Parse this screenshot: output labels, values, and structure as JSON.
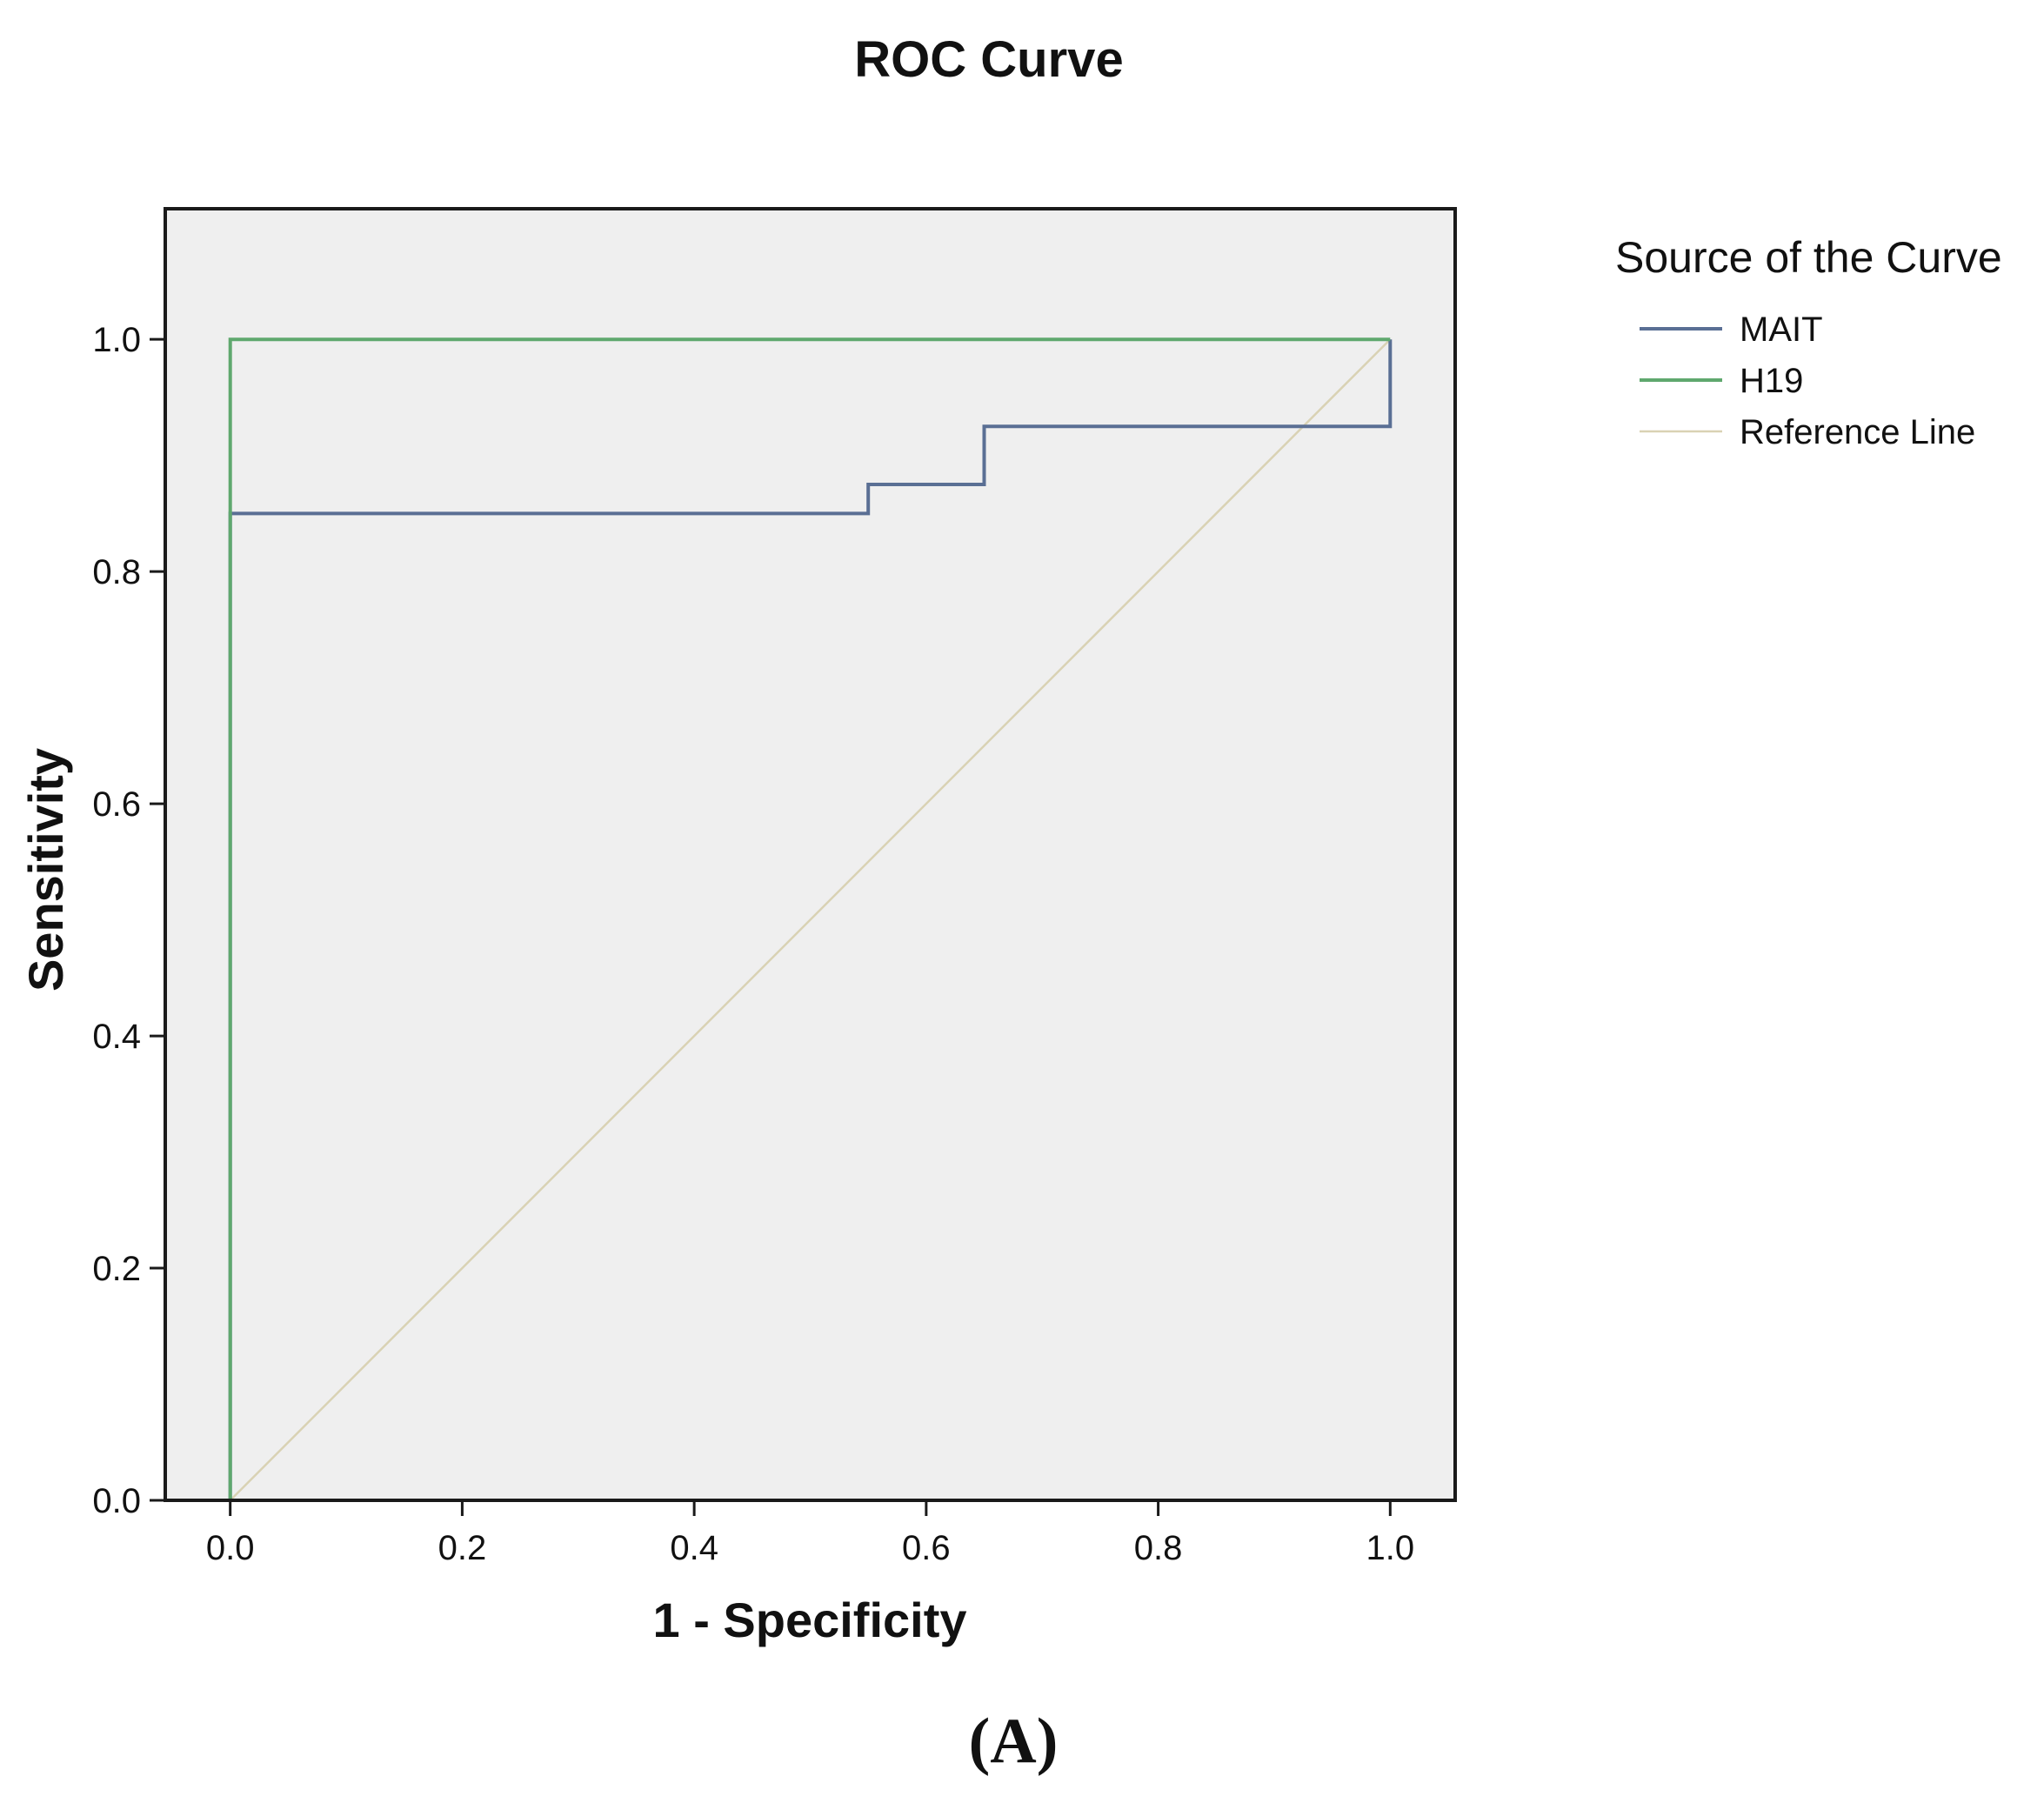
{
  "chart_data": {
    "type": "line",
    "title": "ROC Curve",
    "xlabel": "1 - Specificity",
    "ylabel": "Sensitivity",
    "xlim": [
      -0.056,
      1.056
    ],
    "ylim": [
      0.0,
      1.1125
    ],
    "xticks": [
      0.0,
      0.2,
      0.4,
      0.6,
      0.8,
      1.0
    ],
    "yticks": [
      0.0,
      0.2,
      0.4,
      0.6,
      0.8,
      1.0
    ],
    "xtick_labels": [
      "0.0",
      "0.2",
      "0.4",
      "0.6",
      "0.8",
      "1.0"
    ],
    "ytick_labels": [
      "0.0",
      "0.2",
      "0.4",
      "0.6",
      "0.8",
      "1.0"
    ],
    "grid": false,
    "legend": {
      "title": "Source of the Curve",
      "position": "right"
    },
    "series": [
      {
        "name": "MAIT",
        "color": "#5a6f94",
        "x": [
          0.0,
          0.0,
          0.55,
          0.55,
          0.65,
          0.65,
          1.0,
          1.0
        ],
        "y": [
          0.0,
          0.85,
          0.85,
          0.875,
          0.875,
          0.925,
          0.925,
          1.0
        ]
      },
      {
        "name": "H19",
        "color": "#5fa86e",
        "x": [
          0.0,
          0.0,
          1.0
        ],
        "y": [
          0.0,
          1.0,
          1.0
        ]
      },
      {
        "name": "Reference Line",
        "color": "#d9d2b4",
        "x": [
          0.0,
          1.0
        ],
        "y": [
          0.0,
          1.0
        ]
      }
    ],
    "plot_background": "#efefef",
    "panel_label": "(A)"
  }
}
